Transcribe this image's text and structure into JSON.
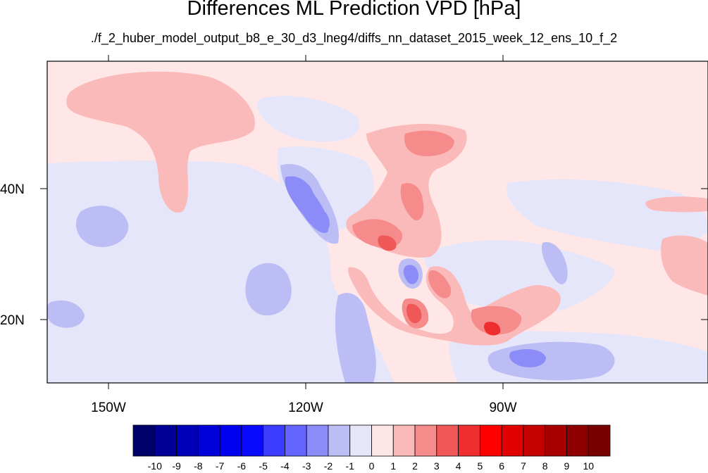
{
  "title": "Differences ML Prediction VPD [hPa]",
  "subtitle": "./f_2_huber_model_output_b8_e_30_d3_lneg4/diffs_nn_dataset_2015_week_12_ens_10_f_2",
  "map": {
    "lon_range": [
      -160,
      -62
    ],
    "lat_range": [
      11,
      60
    ],
    "background_color": "#ffe7e7",
    "lon_ticks": [
      {
        "lon": -150,
        "label": "150W"
      },
      {
        "lon": -120,
        "label": "120W"
      },
      {
        "lon": -90,
        "label": "90W"
      }
    ],
    "lat_ticks": [
      {
        "lat": 40,
        "label": "40N"
      },
      {
        "lat": 20,
        "label": "20N"
      }
    ]
  },
  "colorbar": {
    "labels": [
      "-10",
      "-9",
      "-8",
      "-7",
      "-6",
      "-5",
      "-4",
      "-3",
      "-2",
      "-1",
      "0",
      "1",
      "2",
      "3",
      "4",
      "5",
      "6",
      "7",
      "8",
      "9",
      "10"
    ],
    "colors": [
      "#00006a",
      "#000096",
      "#0000b8",
      "#0000d8",
      "#0000f0",
      "#0a0aff",
      "#3c3cff",
      "#6464ff",
      "#8c8cf8",
      "#bdbdf5",
      "#e6e6fb",
      "#fde6e6",
      "#fbbaba",
      "#f58b8b",
      "#f05858",
      "#ee2e2e",
      "#ff0000",
      "#e00000",
      "#c40000",
      "#a80000",
      "#8e0000",
      "#780000"
    ]
  }
}
